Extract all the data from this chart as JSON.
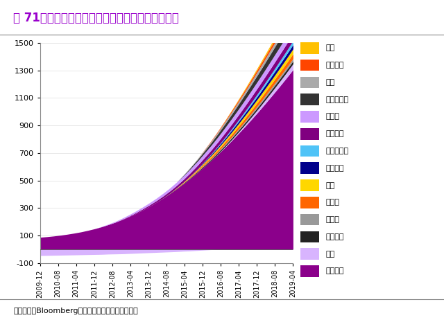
{
  "title": "图 71：中国是优衣库海外扩张的主领地（门店数）",
  "footer": "资料来源：Bloomberg、光大证券研究所，单位：家",
  "ylim": [
    -100,
    1500
  ],
  "yticks": [
    -100,
    100,
    300,
    500,
    700,
    900,
    1100,
    1300,
    1500
  ],
  "series": [
    {
      "label": "中国大陆",
      "color": "#8B008B",
      "values": [
        88,
        92,
        97,
        103,
        110,
        118,
        127,
        138,
        150,
        164,
        180,
        197,
        216,
        237,
        260,
        285,
        312,
        341,
        372,
        405,
        440,
        477,
        516,
        557,
        600,
        644,
        690,
        738,
        788,
        840,
        893,
        948,
        1004,
        1062,
        1121,
        1181,
        1242,
        1305
      ]
    },
    {
      "label": "韩国",
      "color": "#D8B4FE",
      "values": [
        -45,
        -44,
        -43,
        -42,
        -41,
        -40,
        -39,
        -38,
        -37,
        -36,
        -34,
        -33,
        -32,
        -30,
        -28,
        -26,
        -24,
        -22,
        -20,
        -18,
        -16,
        -13,
        -11,
        -8,
        -5,
        -2,
        1,
        4,
        7,
        10,
        14,
        18,
        22,
        26,
        30,
        34,
        38,
        42
      ]
    },
    {
      "label": "中国台湾",
      "color": "#222222",
      "values": [
        0,
        0,
        0,
        0,
        0,
        0,
        0,
        0,
        0,
        0,
        0,
        0,
        0,
        0,
        0,
        0,
        0,
        0,
        1,
        2,
        3,
        4,
        5,
        6,
        7,
        8,
        10,
        11,
        12,
        13,
        14,
        15,
        16,
        17,
        18,
        19,
        20,
        21
      ]
    },
    {
      "label": "菲律宾",
      "color": "#999999",
      "values": [
        0,
        0,
        0,
        0,
        0,
        0,
        0,
        0,
        0,
        0,
        0,
        0,
        0,
        0,
        0,
        0,
        0,
        0,
        0,
        0,
        0,
        1,
        2,
        3,
        4,
        5,
        6,
        7,
        8,
        9,
        10,
        11,
        12,
        13,
        14,
        15,
        16,
        17
      ]
    },
    {
      "label": "美　国",
      "color": "#FF6600",
      "values": [
        0,
        0,
        0,
        0,
        0,
        0,
        0,
        0,
        0,
        0,
        0,
        0,
        0,
        0,
        0,
        0,
        0,
        0,
        0,
        0,
        2,
        4,
        6,
        8,
        10,
        12,
        14,
        16,
        18,
        20,
        22,
        24,
        26,
        28,
        30,
        32,
        34,
        36
      ]
    },
    {
      "label": "泰国",
      "color": "#FFD700",
      "values": [
        0,
        0,
        0,
        0,
        0,
        0,
        0,
        0,
        0,
        0,
        0,
        0,
        0,
        0,
        0,
        0,
        0,
        0,
        0,
        1,
        2,
        3,
        4,
        6,
        8,
        10,
        12,
        14,
        16,
        18,
        20,
        22,
        24,
        26,
        28,
        30,
        32,
        34
      ]
    },
    {
      "label": "马拉西亚",
      "color": "#00008B",
      "values": [
        0,
        0,
        0,
        0,
        0,
        0,
        0,
        0,
        0,
        0,
        0,
        0,
        0,
        0,
        0,
        0,
        0,
        0,
        0,
        0,
        0,
        0,
        2,
        4,
        6,
        8,
        10,
        12,
        14,
        16,
        18,
        20,
        22,
        24,
        26,
        28,
        30,
        32
      ]
    },
    {
      "label": "俄　罗　斯",
      "color": "#4FC3F7",
      "values": [
        0,
        0,
        0,
        0,
        0,
        0,
        0,
        0,
        0,
        0,
        0,
        0,
        0,
        0,
        0,
        0,
        0,
        0,
        0,
        0,
        0,
        0,
        0,
        0,
        2,
        4,
        6,
        8,
        10,
        12,
        14,
        16,
        18,
        20,
        22,
        24,
        26,
        28
      ]
    },
    {
      "label": "中国香港",
      "color": "#800080",
      "values": [
        0,
        0,
        0,
        0,
        0,
        0,
        0,
        0,
        0,
        0,
        0,
        0,
        2,
        4,
        6,
        8,
        10,
        12,
        14,
        16,
        18,
        20,
        22,
        24,
        26,
        28,
        30,
        32,
        34,
        36,
        38,
        40,
        42,
        44,
        46,
        48,
        50,
        52
      ]
    },
    {
      "label": "新加坡",
      "color": "#CC99FF",
      "values": [
        0,
        0,
        0,
        0,
        0,
        0,
        0,
        0,
        0,
        2,
        4,
        6,
        8,
        10,
        12,
        14,
        16,
        18,
        20,
        22,
        24,
        26,
        28,
        30,
        32,
        34,
        36,
        38,
        40,
        42,
        44,
        46,
        48,
        50,
        52,
        54,
        56,
        58
      ]
    },
    {
      "label": "印度尼西亚",
      "color": "#333333",
      "values": [
        0,
        0,
        0,
        0,
        0,
        0,
        0,
        0,
        0,
        0,
        0,
        0,
        0,
        0,
        0,
        0,
        0,
        0,
        0,
        0,
        0,
        4,
        8,
        12,
        16,
        20,
        24,
        28,
        32,
        36,
        40,
        44,
        48,
        52,
        56,
        60,
        64,
        68
      ]
    },
    {
      "label": "法国",
      "color": "#AAAAAA",
      "values": [
        0,
        0,
        0,
        0,
        0,
        0,
        0,
        0,
        0,
        0,
        0,
        0,
        0,
        0,
        0,
        0,
        0,
        0,
        0,
        0,
        0,
        2,
        4,
        6,
        8,
        10,
        12,
        14,
        16,
        18,
        20,
        22,
        24,
        26,
        28,
        30,
        32,
        34
      ]
    },
    {
      "label": "澳大利亚",
      "color": "#FF4500",
      "values": [
        0,
        0,
        0,
        0,
        0,
        0,
        0,
        0,
        0,
        0,
        0,
        0,
        0,
        0,
        0,
        0,
        0,
        0,
        0,
        0,
        0,
        0,
        0,
        0,
        2,
        4,
        6,
        8,
        10,
        12,
        14,
        16,
        18,
        20,
        22,
        24,
        26,
        28
      ]
    },
    {
      "label": "英国",
      "color": "#FFC000",
      "values": [
        0,
        0,
        0,
        0,
        0,
        0,
        0,
        0,
        0,
        0,
        0,
        0,
        0,
        0,
        0,
        0,
        0,
        0,
        0,
        0,
        0,
        0,
        0,
        0,
        0,
        0,
        0,
        2,
        4,
        6,
        8,
        10,
        12,
        14,
        16,
        18,
        20,
        22
      ]
    }
  ],
  "xtick_labels": [
    "2009-12",
    "2010-08",
    "2011-04",
    "2011-12",
    "2012-08",
    "2013-04",
    "2013-12",
    "2014-08",
    "2015-04",
    "2015-12",
    "2016-08",
    "2017-04",
    "2017-12",
    "2018-08",
    "2019-04"
  ],
  "legend_items": [
    [
      "英国",
      "#FFC000"
    ],
    [
      "澳大利亚",
      "#FF4500"
    ],
    [
      "法国",
      "#AAAAAA"
    ],
    [
      "印度尼西亚",
      "#333333"
    ],
    [
      "新加坡",
      "#CC99FF"
    ],
    [
      "中国香港",
      "#800080"
    ],
    [
      "俄　罗　斯",
      "#4FC3F7"
    ],
    [
      "马拉西亚",
      "#00008B"
    ],
    [
      "泰国",
      "#FFD700"
    ],
    [
      "美　国",
      "#FF6600"
    ],
    [
      "菲律宾",
      "#999999"
    ],
    [
      "中国台湾",
      "#222222"
    ],
    [
      "韩国",
      "#D8B4FE"
    ],
    [
      "中国大陆",
      "#8B008B"
    ]
  ]
}
